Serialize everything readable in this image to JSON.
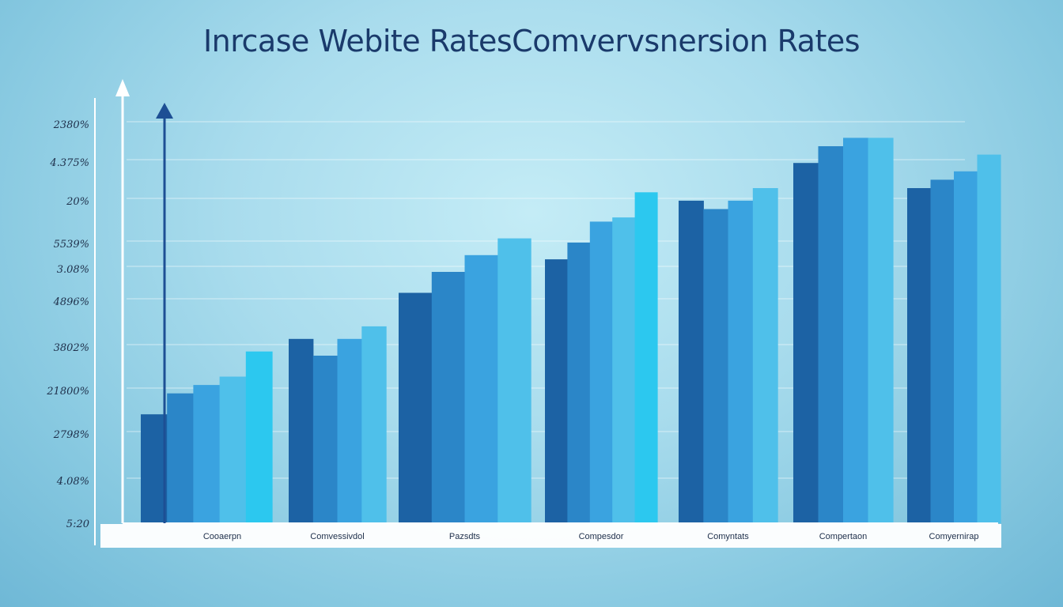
{
  "chart_data": {
    "type": "bar",
    "title": "Inrcase Webite RatesComvervsnersion  Rates",
    "ytick_labels": [
      "2380%",
      "4.375%",
      "20%",
      "5539%",
      "3.08%",
      "4896%",
      "3802%",
      "21800%",
      "2798%",
      "4.08%",
      "5:20"
    ],
    "categories": [
      "Cooaerpn",
      "Comvessivdol",
      "Pazsdts",
      "Compesdor",
      "Comyntats",
      "Compertaon",
      "Comyernirap"
    ],
    "series": [
      {
        "values": [
          26,
          44,
          55,
          63,
          77,
          86,
          80
        ]
      },
      {
        "values": [
          31,
          40,
          60,
          67,
          75,
          90,
          82
        ]
      },
      {
        "values": [
          33,
          44,
          64,
          72,
          77,
          92,
          84
        ]
      },
      {
        "values": [
          35,
          47,
          68,
          73,
          80,
          92,
          88
        ]
      },
      {
        "values": [
          41,
          null,
          null,
          79,
          null,
          null,
          null
        ]
      }
    ],
    "series_colors": [
      "#1c62a4",
      "#2b86c8",
      "#3aa3e0",
      "#4fc0ea",
      "#2cc8ef"
    ],
    "ylim": [
      0,
      100
    ],
    "grid": true,
    "axis_color": "#ffffff",
    "arrow_color": "#1d4f94"
  }
}
